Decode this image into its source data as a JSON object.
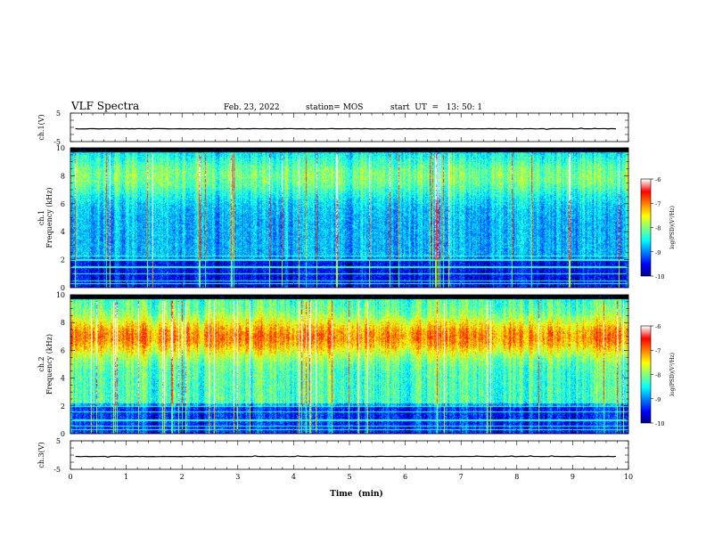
{
  "header": {
    "title": "VLF Spectra",
    "date": "Feb. 23, 2022",
    "station": "station= MOS",
    "start": "start  UT  =   13: 50: 1"
  },
  "chart_data": [
    {
      "type": "line",
      "panel": "ch1-waveform",
      "ylabel": "ch.1(V)",
      "ylim": [
        -5,
        5
      ],
      "yticks": [
        "5",
        "-5"
      ],
      "series": [
        {
          "values_constant": -0.5
        }
      ]
    },
    {
      "type": "heatmap",
      "panel": "ch1-spectrogram",
      "ylabel": "ch.1\nFrequency (kHz)",
      "ylabel_lines": [
        "ch.1",
        "Frequency (kHz)"
      ],
      "ylim": [
        0,
        10
      ],
      "yticks": [
        "0",
        "2",
        "4",
        "6",
        "8",
        "10"
      ],
      "xlim": [
        0,
        10
      ],
      "colorbar": {
        "label": "log(PSD)(V²/Hz)",
        "range": [
          -10,
          -6
        ],
        "ticks": [
          "-6",
          "-7",
          "-8",
          "-9",
          "-10"
        ]
      },
      "bands_khz": [
        0.3,
        0.5,
        1.0,
        1.5,
        2.0,
        2.3
      ]
    },
    {
      "type": "heatmap",
      "panel": "ch2-spectrogram",
      "ylabel": "ch.2\nFrequency (kHz)",
      "ylabel_lines": [
        "ch.2",
        "Frequency (kHz)"
      ],
      "ylim": [
        0,
        10
      ],
      "yticks": [
        "0",
        "2",
        "4",
        "6",
        "8",
        "10"
      ],
      "xlim": [
        0,
        10
      ],
      "colorbar": {
        "label": "log(PSD)(V²/Hz)",
        "range": [
          -10,
          -6
        ],
        "ticks": [
          "-6",
          "-7",
          "-8",
          "-9",
          "-10"
        ]
      },
      "bands_khz": [
        0.3,
        0.6,
        1.0,
        1.6,
        2.0
      ]
    },
    {
      "type": "line",
      "panel": "ch3-waveform",
      "ylabel": "ch.3(V)",
      "ylim": [
        -5,
        5
      ],
      "yticks": [
        "5",
        "-5"
      ],
      "series": [
        {
          "values_constant": -0.5
        }
      ]
    }
  ],
  "xaxis": {
    "label": "Time  (min)",
    "range": [
      0,
      10
    ],
    "ticks": [
      "0",
      "1",
      "2",
      "3",
      "4",
      "5",
      "6",
      "7",
      "8",
      "9",
      "10"
    ]
  },
  "colors": {
    "background": "#ffffff",
    "axis": "#000000",
    "colormap": [
      "#00007f",
      "#0000ff",
      "#0080ff",
      "#00ffff",
      "#80ff80",
      "#ffff00",
      "#ff8000",
      "#ff0000",
      "#ffffff"
    ]
  }
}
